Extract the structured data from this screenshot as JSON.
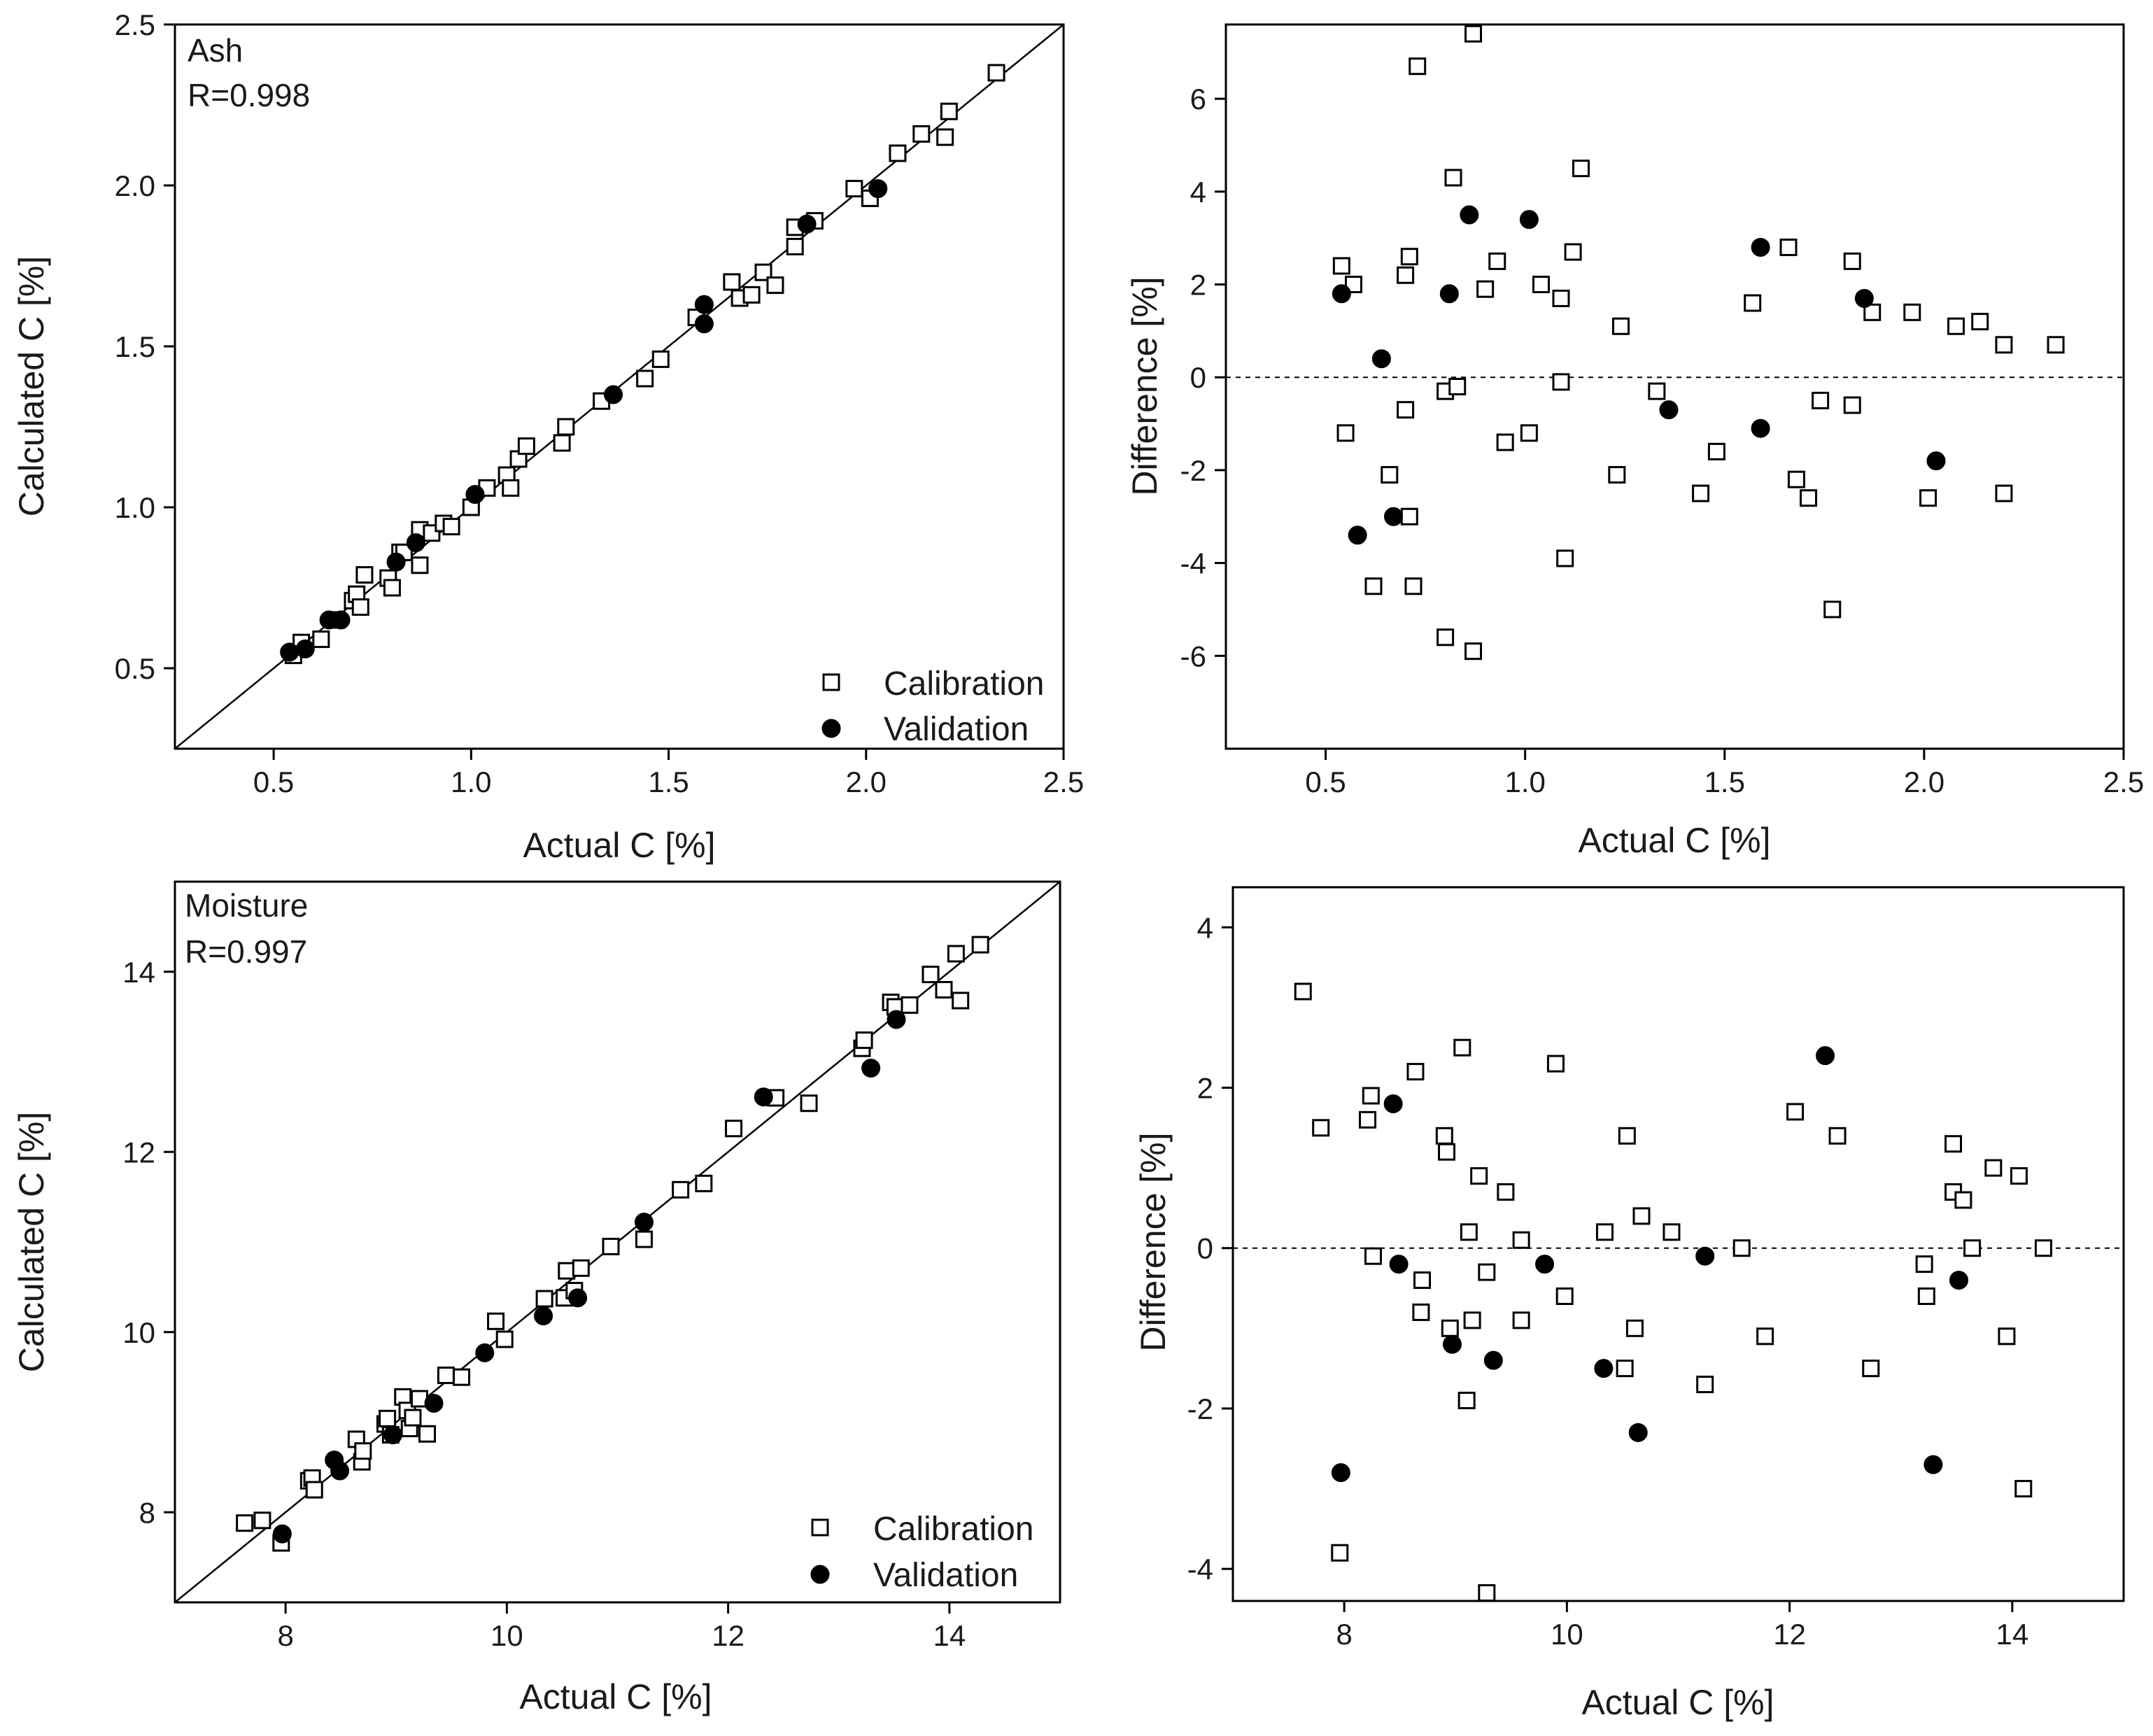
{
  "chart_data": [
    {
      "id": "ash-parity",
      "type": "scatter",
      "annotation": [
        "Ash",
        "R=0.998"
      ],
      "xlabel": "Actual C [%]",
      "ylabel": "Calculated C [%]",
      "xlim": [
        0.25,
        2.5
      ],
      "ylim": [
        0.25,
        2.5
      ],
      "xticks": [
        0.5,
        1.0,
        1.5,
        2.0,
        2.5
      ],
      "xticklabels": [
        "0.5",
        "1.0",
        "1.5",
        "2.0",
        "2.5"
      ],
      "yticks": [
        0.5,
        1.0,
        1.5,
        2.0,
        2.5
      ],
      "yticklabels": [
        "0.5",
        "1.0",
        "1.5",
        "2.0",
        "2.5"
      ],
      "identity_line": true,
      "legend": {
        "position": "bottom-right",
        "entries": [
          "Calibration",
          "Validation"
        ]
      },
      "series": [
        {
          "name": "Calibration",
          "marker": "open-square",
          "points": [
            [
              0.55,
              0.54
            ],
            [
              0.57,
              0.58
            ],
            [
              0.62,
              0.59
            ],
            [
              0.66,
              0.65
            ],
            [
              0.7,
              0.71
            ],
            [
              0.71,
              0.73
            ],
            [
              0.72,
              0.69
            ],
            [
              0.73,
              0.79
            ],
            [
              0.79,
              0.78
            ],
            [
              0.8,
              0.75
            ],
            [
              0.82,
              0.86
            ],
            [
              0.83,
              0.86
            ],
            [
              0.87,
              0.93
            ],
            [
              0.87,
              0.82
            ],
            [
              0.9,
              0.92
            ],
            [
              0.93,
              0.95
            ],
            [
              0.95,
              0.94
            ],
            [
              1.0,
              1.0
            ],
            [
              1.04,
              1.06
            ],
            [
              1.09,
              1.1
            ],
            [
              1.1,
              1.06
            ],
            [
              1.12,
              1.15
            ],
            [
              1.14,
              1.19
            ],
            [
              1.23,
              1.2
            ],
            [
              1.24,
              1.25
            ],
            [
              1.33,
              1.33
            ],
            [
              1.44,
              1.4
            ],
            [
              1.48,
              1.46
            ],
            [
              1.57,
              1.59
            ],
            [
              1.66,
              1.7
            ],
            [
              1.68,
              1.65
            ],
            [
              1.71,
              1.66
            ],
            [
              1.74,
              1.73
            ],
            [
              1.77,
              1.69
            ],
            [
              1.82,
              1.81
            ],
            [
              1.82,
              1.87
            ],
            [
              1.87,
              1.89
            ],
            [
              1.97,
              1.99
            ],
            [
              2.01,
              1.96
            ],
            [
              2.08,
              2.1
            ],
            [
              2.14,
              2.16
            ],
            [
              2.2,
              2.15
            ],
            [
              2.21,
              2.23
            ],
            [
              2.33,
              2.35
            ]
          ]
        },
        {
          "name": "Validation",
          "marker": "filled-circle",
          "points": [
            [
              0.54,
              0.55
            ],
            [
              0.58,
              0.56
            ],
            [
              0.64,
              0.65
            ],
            [
              0.67,
              0.65
            ],
            [
              0.81,
              0.83
            ],
            [
              0.86,
              0.89
            ],
            [
              1.01,
              1.04
            ],
            [
              1.36,
              1.35
            ],
            [
              1.59,
              1.57
            ],
            [
              1.59,
              1.63
            ],
            [
              1.85,
              1.88
            ],
            [
              2.03,
              1.99
            ]
          ]
        }
      ]
    },
    {
      "id": "ash-difference",
      "type": "scatter",
      "xlabel": "Actual C [%]",
      "ylabel": "Difference [%]",
      "xlim": [
        0.25,
        2.5
      ],
      "ylim": [
        -8,
        7.6
      ],
      "xticks": [
        0.5,
        1.0,
        1.5,
        2.0,
        2.5
      ],
      "xticklabels": [
        "0.5",
        "1.0",
        "1.5",
        "2.0",
        "2.5"
      ],
      "yticks": [
        -6,
        -4,
        -2,
        0,
        2,
        4,
        6
      ],
      "yticklabels": [
        "-6",
        "-4",
        "-2",
        "0",
        "2",
        "4",
        "6"
      ],
      "zero_line": true,
      "series": [
        {
          "name": "Calibration",
          "marker": "open-square",
          "points": [
            [
              0.54,
              2.4
            ],
            [
              0.55,
              -1.2
            ],
            [
              0.57,
              2.0
            ],
            [
              0.62,
              -4.5
            ],
            [
              0.66,
              -2.1
            ],
            [
              0.7,
              -0.7
            ],
            [
              0.7,
              2.2
            ],
            [
              0.71,
              2.6
            ],
            [
              0.71,
              -3.0
            ],
            [
              0.72,
              -4.5
            ],
            [
              0.73,
              6.7
            ],
            [
              0.8,
              -0.3
            ],
            [
              0.8,
              -5.6
            ],
            [
              0.82,
              4.3
            ],
            [
              0.83,
              -0.2
            ],
            [
              0.87,
              -5.9
            ],
            [
              0.87,
              7.4
            ],
            [
              0.9,
              1.9
            ],
            [
              0.93,
              2.5
            ],
            [
              0.95,
              -1.4
            ],
            [
              1.01,
              -1.2
            ],
            [
              1.04,
              2.0
            ],
            [
              1.09,
              1.7
            ],
            [
              1.09,
              -0.1
            ],
            [
              1.1,
              -3.9
            ],
            [
              1.12,
              2.7
            ],
            [
              1.14,
              4.5
            ],
            [
              1.23,
              -2.1
            ],
            [
              1.24,
              1.1
            ],
            [
              1.33,
              -0.3
            ],
            [
              1.44,
              -2.5
            ],
            [
              1.48,
              -1.6
            ],
            [
              1.57,
              1.6
            ],
            [
              1.66,
              2.8
            ],
            [
              1.68,
              -2.2
            ],
            [
              1.71,
              -2.6
            ],
            [
              1.74,
              -0.5
            ],
            [
              1.77,
              -5.0
            ],
            [
              1.82,
              2.5
            ],
            [
              1.82,
              -0.6
            ],
            [
              1.87,
              1.4
            ],
            [
              1.97,
              1.4
            ],
            [
              2.01,
              -2.6
            ],
            [
              2.08,
              1.1
            ],
            [
              2.14,
              1.2
            ],
            [
              2.2,
              -2.5
            ],
            [
              2.2,
              0.7
            ],
            [
              2.33,
              0.7
            ]
          ]
        },
        {
          "name": "Validation",
          "marker": "filled-circle",
          "points": [
            [
              0.54,
              1.8
            ],
            [
              0.58,
              -3.4
            ],
            [
              0.64,
              0.4
            ],
            [
              0.67,
              -3.0
            ],
            [
              0.81,
              1.8
            ],
            [
              0.86,
              3.5
            ],
            [
              1.01,
              3.4
            ],
            [
              1.36,
              -0.7
            ],
            [
              1.59,
              2.8
            ],
            [
              1.59,
              -1.1
            ],
            [
              1.85,
              1.7
            ],
            [
              2.03,
              -1.8
            ]
          ]
        }
      ]
    },
    {
      "id": "moisture-parity",
      "type": "scatter",
      "annotation": [
        "Moisture",
        "R=0.997"
      ],
      "xlabel": "Actual C [%]",
      "ylabel": "Calculated C [%]",
      "xlim": [
        7,
        15
      ],
      "ylim": [
        7,
        15
      ],
      "xticks": [
        8,
        10,
        12,
        14
      ],
      "xticklabels": [
        "8",
        "10",
        "12",
        "14"
      ],
      "yticks": [
        8,
        10,
        12,
        14
      ],
      "yticklabels": [
        "8",
        "10",
        "12",
        "14"
      ],
      "identity_line": true,
      "legend": {
        "position": "bottom-right",
        "entries": [
          "Calibration",
          "Validation"
        ]
      },
      "series": [
        {
          "name": "Calibration",
          "marker": "open-square",
          "points": [
            [
              7.63,
              7.88
            ],
            [
              7.79,
              7.91
            ],
            [
              7.96,
              7.66
            ],
            [
              8.21,
              8.35
            ],
            [
              8.24,
              8.38
            ],
            [
              8.26,
              8.25
            ],
            [
              8.64,
              8.81
            ],
            [
              8.69,
              8.56
            ],
            [
              8.7,
              8.68
            ],
            [
              8.9,
              8.98
            ],
            [
              8.92,
              9.04
            ],
            [
              8.95,
              8.86
            ],
            [
              9.06,
              9.28
            ],
            [
              9.1,
              9.13
            ],
            [
              9.12,
              8.93
            ],
            [
              9.15,
              9.05
            ],
            [
              9.21,
              9.26
            ],
            [
              9.28,
              8.87
            ],
            [
              9.45,
              9.52
            ],
            [
              9.59,
              9.5
            ],
            [
              9.9,
              10.12
            ],
            [
              9.98,
              9.92
            ],
            [
              10.34,
              10.37
            ],
            [
              10.52,
              10.38
            ],
            [
              10.54,
              10.68
            ],
            [
              10.61,
              10.46
            ],
            [
              10.67,
              10.71
            ],
            [
              10.94,
              10.95
            ],
            [
              11.24,
              11.03
            ],
            [
              11.57,
              11.58
            ],
            [
              11.78,
              11.65
            ],
            [
              12.05,
              12.26
            ],
            [
              12.43,
              12.6
            ],
            [
              12.73,
              12.54
            ],
            [
              13.21,
              13.15
            ],
            [
              13.23,
              13.24
            ],
            [
              13.47,
              13.66
            ],
            [
              13.51,
              13.61
            ],
            [
              13.64,
              13.63
            ],
            [
              13.83,
              13.97
            ],
            [
              13.95,
              13.8
            ],
            [
              14.06,
              14.2
            ],
            [
              14.1,
              13.68
            ],
            [
              14.28,
              14.3
            ]
          ]
        },
        {
          "name": "Validation",
          "marker": "filled-circle",
          "points": [
            [
              7.97,
              7.76
            ],
            [
              8.44,
              8.58
            ],
            [
              8.49,
              8.46
            ],
            [
              8.97,
              8.86
            ],
            [
              9.34,
              9.21
            ],
            [
              9.8,
              9.77
            ],
            [
              10.33,
              10.18
            ],
            [
              10.64,
              10.38
            ],
            [
              11.24,
              11.22
            ],
            [
              12.32,
              12.61
            ],
            [
              13.29,
              12.93
            ],
            [
              13.52,
              13.47
            ]
          ]
        }
      ]
    },
    {
      "id": "moisture-difference",
      "type": "scatter",
      "xlabel": "Actual C [%]",
      "ylabel": "Difference [%]",
      "xlim": [
        7,
        15
      ],
      "ylim": [
        -4.4,
        4.5
      ],
      "xticks": [
        8,
        10,
        12,
        14
      ],
      "xticklabels": [
        "8",
        "10",
        "12",
        "14"
      ],
      "yticks": [
        -4,
        -2,
        0,
        2,
        4
      ],
      "yticklabels": [
        "-4",
        "-2",
        "0",
        "2",
        "4"
      ],
      "zero_line": true,
      "series": [
        {
          "name": "Calibration",
          "marker": "open-square",
          "points": [
            [
              7.63,
              3.2
            ],
            [
              7.79,
              1.5
            ],
            [
              7.96,
              -3.8
            ],
            [
              8.21,
              1.6
            ],
            [
              8.24,
              1.9
            ],
            [
              8.26,
              -0.1
            ],
            [
              8.64,
              2.2
            ],
            [
              8.69,
              -0.8
            ],
            [
              8.7,
              -0.4
            ],
            [
              8.9,
              1.4
            ],
            [
              8.92,
              1.2
            ],
            [
              8.95,
              -1.0
            ],
            [
              9.06,
              2.5
            ],
            [
              9.1,
              -1.9
            ],
            [
              9.12,
              0.2
            ],
            [
              9.15,
              -0.9
            ],
            [
              9.21,
              0.9
            ],
            [
              9.28,
              -0.3
            ],
            [
              9.28,
              -4.3
            ],
            [
              9.45,
              0.7
            ],
            [
              9.59,
              0.1
            ],
            [
              9.59,
              -0.9
            ],
            [
              9.9,
              2.3
            ],
            [
              9.98,
              -0.6
            ],
            [
              10.34,
              0.2
            ],
            [
              10.52,
              -1.5
            ],
            [
              10.54,
              1.4
            ],
            [
              10.61,
              -1.0
            ],
            [
              10.67,
              0.4
            ],
            [
              10.94,
              0.2
            ],
            [
              11.24,
              -1.7
            ],
            [
              11.57,
              0.0
            ],
            [
              11.78,
              -1.1
            ],
            [
              12.05,
              1.7
            ],
            [
              12.43,
              1.4
            ],
            [
              12.73,
              -1.5
            ],
            [
              13.21,
              -0.2
            ],
            [
              13.23,
              -0.6
            ],
            [
              13.47,
              1.3
            ],
            [
              13.47,
              0.7
            ],
            [
              13.56,
              0.6
            ],
            [
              13.64,
              0.0
            ],
            [
              13.83,
              1.0
            ],
            [
              13.95,
              -1.1
            ],
            [
              14.06,
              0.9
            ],
            [
              14.1,
              -3.0
            ],
            [
              14.28,
              0.0
            ]
          ]
        },
        {
          "name": "Validation",
          "marker": "filled-circle",
          "points": [
            [
              7.97,
              -2.8
            ],
            [
              8.44,
              1.8
            ],
            [
              8.49,
              -0.2
            ],
            [
              8.97,
              -1.2
            ],
            [
              9.34,
              -1.4
            ],
            [
              9.8,
              -0.2
            ],
            [
              10.33,
              -1.5
            ],
            [
              10.64,
              -2.3
            ],
            [
              11.24,
              -0.1
            ],
            [
              12.32,
              2.4
            ],
            [
              13.29,
              -2.7
            ],
            [
              13.52,
              -0.4
            ]
          ]
        }
      ]
    }
  ]
}
